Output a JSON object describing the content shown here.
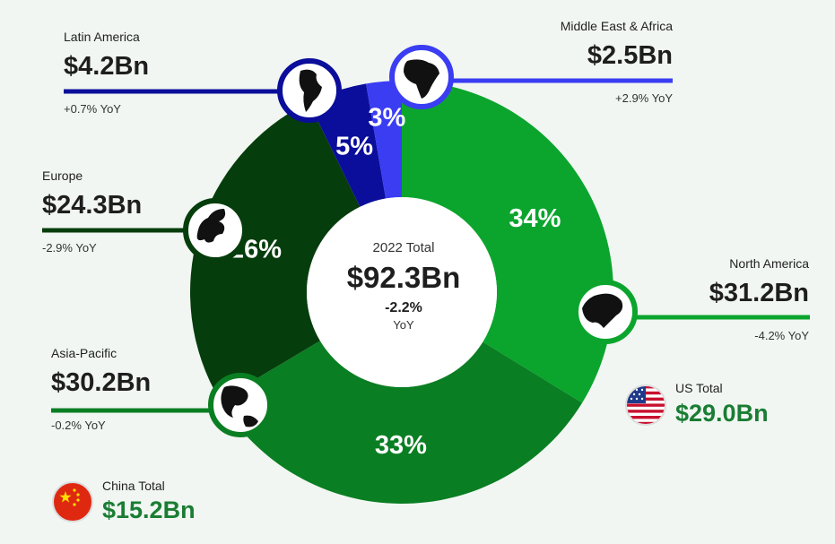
{
  "colors": {
    "north_america": "#0ba52d",
    "asia_pacific": "#0a7e22",
    "europe": "#063d0c",
    "latin_america": "#0b0e9a",
    "middle_east_africa": "#3a3df2",
    "total_green": "#1a7d33",
    "background": "#f1f6f2"
  },
  "chart_data": {
    "type": "pie",
    "title": "2022 Total",
    "total": "$92.3Bn",
    "total_yoy": "-2.2%",
    "total_yoy_label": "YoY",
    "slices": [
      {
        "name": "North America",
        "value": 31.2,
        "value_label": "$31.2Bn",
        "percent": 34,
        "percent_label": "34%",
        "yoy": "-4.2% YoY",
        "icon": "north-america-map-icon"
      },
      {
        "name": "Asia-Pacific",
        "value": 30.2,
        "value_label": "$30.2Bn",
        "percent": 33,
        "percent_label": "33%",
        "yoy": "-0.2% YoY",
        "icon": "asia-pacific-map-icon"
      },
      {
        "name": "Europe",
        "value": 24.3,
        "value_label": "$24.3Bn",
        "percent": 26,
        "percent_label": "26%",
        "yoy": "-2.9% YoY",
        "icon": "europe-map-icon"
      },
      {
        "name": "Latin America",
        "value": 4.2,
        "value_label": "$4.2Bn",
        "percent": 5,
        "percent_label": "5%",
        "yoy": "+0.7% YoY",
        "icon": "latin-america-map-icon"
      },
      {
        "name": "Middle East & Africa",
        "value": 2.5,
        "value_label": "$2.5Bn",
        "percent": 3,
        "percent_label": "3%",
        "yoy": "+2.9% YoY",
        "icon": "africa-map-icon"
      }
    ],
    "callouts": [
      {
        "name": "US Total",
        "value": "$29.0Bn",
        "icon": "us-flag-icon"
      },
      {
        "name": "China Total",
        "value": "$15.2Bn",
        "icon": "china-flag-icon"
      }
    ]
  }
}
